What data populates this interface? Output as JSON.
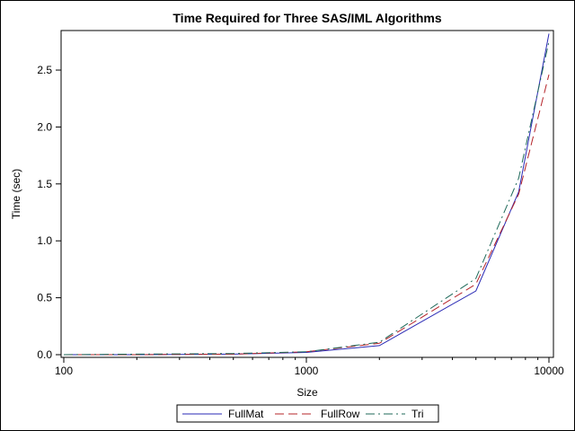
{
  "chart_data": {
    "type": "line",
    "title": "Time Required for Three SAS/IML Algorithms",
    "xlabel": "Size",
    "ylabel": "Time (sec)",
    "x_scale": "log",
    "xlim": [
      100,
      10000
    ],
    "ylim": [
      0,
      2.8
    ],
    "x_ticks": [
      "100",
      "1000",
      "10000"
    ],
    "y_ticks": [
      "0.0",
      "0.5",
      "1.0",
      "1.5",
      "2.0",
      "2.5"
    ],
    "grid": false,
    "legend_position": "bottom",
    "series": [
      {
        "name": "FullMat",
        "color": "#2a2ab5",
        "dash": "solid",
        "x": [
          100,
          200,
          500,
          1000,
          2000,
          5000,
          7500,
          10000
        ],
        "y": [
          0.0,
          0.0,
          0.005,
          0.02,
          0.08,
          0.56,
          1.43,
          2.82
        ]
      },
      {
        "name": "FullRow",
        "color": "#b5242a",
        "dash": "dashed",
        "x": [
          100,
          200,
          500,
          1000,
          2000,
          5000,
          7500,
          10000
        ],
        "y": [
          0.0,
          0.0,
          0.005,
          0.025,
          0.1,
          0.62,
          1.41,
          2.46
        ]
      },
      {
        "name": "Tri",
        "color": "#1f6a5a",
        "dash": "dashdot",
        "x": [
          100,
          200,
          500,
          1000,
          2000,
          5000,
          7500,
          10000
        ],
        "y": [
          0.0,
          0.005,
          0.01,
          0.025,
          0.11,
          0.67,
          1.55,
          2.75
        ]
      }
    ]
  }
}
